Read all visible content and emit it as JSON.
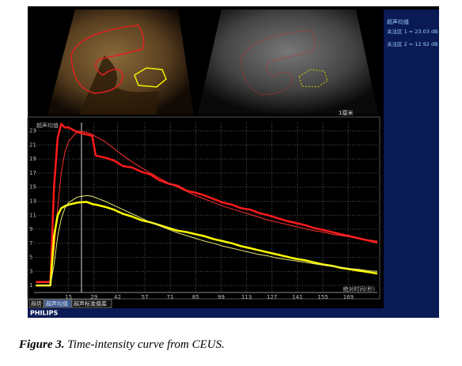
{
  "panel": {
    "title": "超声均值",
    "roi1": "关注区 1 = 23.03 dB",
    "roi2": "关注区 2 = 12.92 dB"
  },
  "image_label": "1厘米",
  "tabs": [
    "趋势",
    "超声均值",
    "超声标准偏差"
  ],
  "brand": "PHILIPS",
  "caption": {
    "label": "Figure 3.",
    "text": "Time-intensity curve from CEUS."
  },
  "chart_data": {
    "type": "line",
    "ylabel": "超声均值",
    "xlabel": "绝对时间(秒)",
    "x": [
      -3,
      0,
      3,
      5,
      7,
      9,
      11,
      13,
      15,
      20,
      25,
      28,
      30,
      35,
      40,
      45,
      50,
      55,
      60,
      65,
      70,
      75,
      80,
      85,
      90,
      95,
      100,
      105,
      110,
      115,
      120,
      125,
      130,
      135,
      140,
      145,
      150,
      155,
      160,
      165,
      170,
      175,
      180,
      185
    ],
    "series": [
      {
        "color": "#ff1a1a",
        "width": 2.5,
        "values": [
          1.5,
          1.5,
          1.5,
          1.5,
          15,
          22,
          24,
          23.5,
          23.5,
          22.8,
          22.5,
          22.3,
          19.5,
          19.2,
          18.8,
          18,
          17.8,
          17.2,
          16.8,
          16,
          15.5,
          15.2,
          14.5,
          14.2,
          13.8,
          13.3,
          12.8,
          12.5,
          12,
          11.8,
          11.3,
          11,
          10.6,
          10.2,
          9.9,
          9.6,
          9.2,
          8.9,
          8.6,
          8.3,
          8.0,
          7.7,
          7.4,
          7.1
        ]
      },
      {
        "color": "#ff3030",
        "width": 1,
        "values": [
          1.5,
          1.5,
          1.5,
          1.5,
          6,
          12,
          17,
          20,
          21.5,
          23,
          22.8,
          22.5,
          22.2,
          21.5,
          20.5,
          19.5,
          18.6,
          17.8,
          17,
          16.3,
          15.6,
          15,
          14.4,
          13.8,
          13.3,
          12.8,
          12.3,
          11.9,
          11.5,
          11.1,
          10.7,
          10.3,
          10,
          9.7,
          9.4,
          9.1,
          8.8,
          8.6,
          8.3,
          8.1,
          7.9,
          7.7,
          7.5,
          7.3
        ]
      },
      {
        "color": "#ffff00",
        "width": 2.5,
        "values": [
          1,
          1,
          1,
          1,
          8,
          11,
          12,
          12.3,
          12.5,
          12.8,
          12.9,
          12.6,
          12.5,
          12.2,
          11.8,
          11.2,
          10.8,
          10.3,
          10,
          9.6,
          9.2,
          8.8,
          8.6,
          8.3,
          8.0,
          7.6,
          7.3,
          7.0,
          6.6,
          6.3,
          6.0,
          5.7,
          5.4,
          5.1,
          4.8,
          4.6,
          4.3,
          4.0,
          3.8,
          3.5,
          3.3,
          3.1,
          2.9,
          2.7
        ]
      },
      {
        "color": "#e8e870",
        "width": 1,
        "values": [
          1,
          1,
          1,
          1,
          4,
          8,
          10.5,
          12,
          12.8,
          13.6,
          13.8,
          13.7,
          13.5,
          13,
          12.4,
          11.8,
          11.2,
          10.6,
          10,
          9.5,
          9,
          8.5,
          8.1,
          7.7,
          7.3,
          7,
          6.6,
          6.3,
          6,
          5.7,
          5.4,
          5.2,
          4.9,
          4.7,
          4.5,
          4.3,
          4.1,
          3.9,
          3.7,
          3.6,
          3.4,
          3.3,
          3.1,
          3.0
        ]
      }
    ],
    "xlim": [
      -4,
      185
    ],
    "ylim": [
      0,
      24.2
    ],
    "xticks": [
      15,
      29,
      42,
      57,
      71,
      85,
      99,
      113,
      127,
      141,
      155,
      169
    ],
    "yticks": [
      1,
      3,
      5,
      7,
      9,
      11,
      13,
      15,
      17,
      19,
      21,
      23
    ],
    "grid": true
  }
}
